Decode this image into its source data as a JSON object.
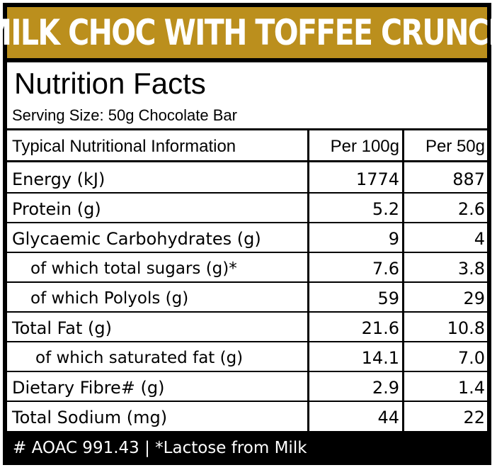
{
  "banner": {
    "title": "MILK CHOC WITH TOFFEE CRUNCH",
    "color": "#bb8f1d"
  },
  "panel": {
    "title": "Nutrition Facts",
    "serving": "Serving Size: 50g Chocolate Bar"
  },
  "table": {
    "headers": [
      "Typical Nutritional Information",
      "Per 100g",
      "Per 50g"
    ],
    "rows": [
      {
        "label": "Energy (kJ)",
        "per100": "1774",
        "per50": "887"
      },
      {
        "label": "Protein (g)",
        "per100": "5.2",
        "per50": "2.6"
      },
      {
        "label": "Glycaemic Carbohydrates (g)",
        "per100": "9",
        "per50": "4"
      },
      {
        "label": "of which total sugars (g)*",
        "per100": "7.6",
        "per50": "3.8"
      },
      {
        "label": "of which Polyols (g)",
        "per100": "59",
        "per50": "29"
      },
      {
        "label": "Total Fat (g)",
        "per100": "21.6",
        "per50": "10.8"
      },
      {
        "label": "of which saturated fat (g)",
        "per100": "14.1",
        "per50": "7.0"
      },
      {
        "label": "Dietary Fibre# (g)",
        "per100": "2.9",
        "per50": "1.4"
      },
      {
        "label": "Total Sodium (mg)",
        "per100": "44",
        "per50": "22"
      }
    ]
  },
  "footer": {
    "note": "# AOAC 991.43  |  *Lactose from Milk"
  }
}
